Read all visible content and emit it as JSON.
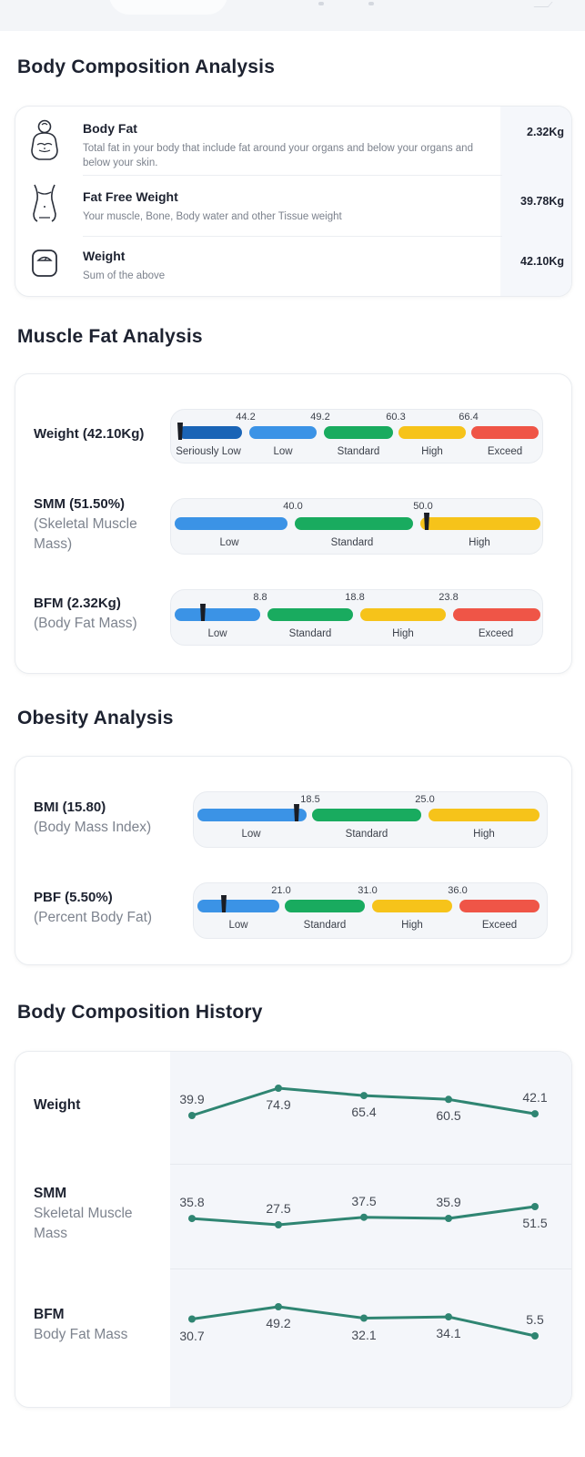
{
  "body_composition": {
    "title": "Body Composition Analysis",
    "items": [
      {
        "title": "Body Fat",
        "desc": "Total fat in your body that include fat around your organs and below your organs and below your skin.",
        "value": "2.32Kg",
        "icon": "body-fat-icon"
      },
      {
        "title": "Fat Free Weight",
        "desc": "Your muscle, Bone, Body water and other Tissue weight",
        "value": "39.78Kg",
        "icon": "torso-icon"
      },
      {
        "title": "Weight",
        "desc": "Sum of the above",
        "value": "42.10Kg",
        "icon": "scale-icon"
      }
    ]
  },
  "muscle_fat": {
    "title": "Muscle Fat Analysis",
    "rows": [
      {
        "label": "Weight (42.10Kg)",
        "sub": "",
        "ticks": [
          "44.2",
          "49.2",
          "60.3",
          "66.4"
        ],
        "categories": [
          "Seriously Low",
          "Low",
          "Standard",
          "High",
          "Exceed"
        ]
      },
      {
        "label": "SMM (51.50%)",
        "sub": "(Skeletal Muscle Mass)",
        "ticks": [
          "40.0",
          "50.0"
        ],
        "categories": [
          "Low",
          "Standard",
          "High"
        ]
      },
      {
        "label": "BFM (2.32Kg)",
        "sub": "(Body Fat Mass)",
        "ticks": [
          "8.8",
          "18.8",
          "23.8"
        ],
        "categories": [
          "Low",
          "Standard",
          "High",
          "Exceed"
        ]
      }
    ]
  },
  "obesity": {
    "title": "Obesity Analysis",
    "rows": [
      {
        "label": "BMI (15.80)",
        "sub": "(Body Mass Index)",
        "ticks": [
          "18.5",
          "25.0"
        ],
        "categories": [
          "Low",
          "Standard",
          "High"
        ]
      },
      {
        "label": "PBF (5.50%)",
        "sub": "(Percent Body Fat)",
        "ticks": [
          "21.0",
          "31.0",
          "36.0"
        ],
        "categories": [
          "Low",
          "Standard",
          "High",
          "Exceed"
        ]
      }
    ]
  },
  "history": {
    "title": "Body Composition History",
    "rows": [
      {
        "label": "Weight",
        "sub": "",
        "values": [
          "39.9",
          "74.9",
          "65.4",
          "60.5",
          "42.1"
        ]
      },
      {
        "label": "SMM",
        "sub": "Skeletal Muscle Mass",
        "values": [
          "35.8",
          "27.5",
          "37.5",
          "35.9",
          "51.5"
        ]
      },
      {
        "label": "BFM",
        "sub": "Body Fat Mass",
        "values": [
          "30.7",
          "49.2",
          "32.1",
          "34.1",
          "5.5"
        ]
      }
    ]
  },
  "colors": {
    "seriously_low": "#1a64b6",
    "low": "#3b93e6",
    "standard": "#19ab5f",
    "high": "#f6c31a",
    "exceed": "#ef5547",
    "history_line": "#2f8572"
  }
}
